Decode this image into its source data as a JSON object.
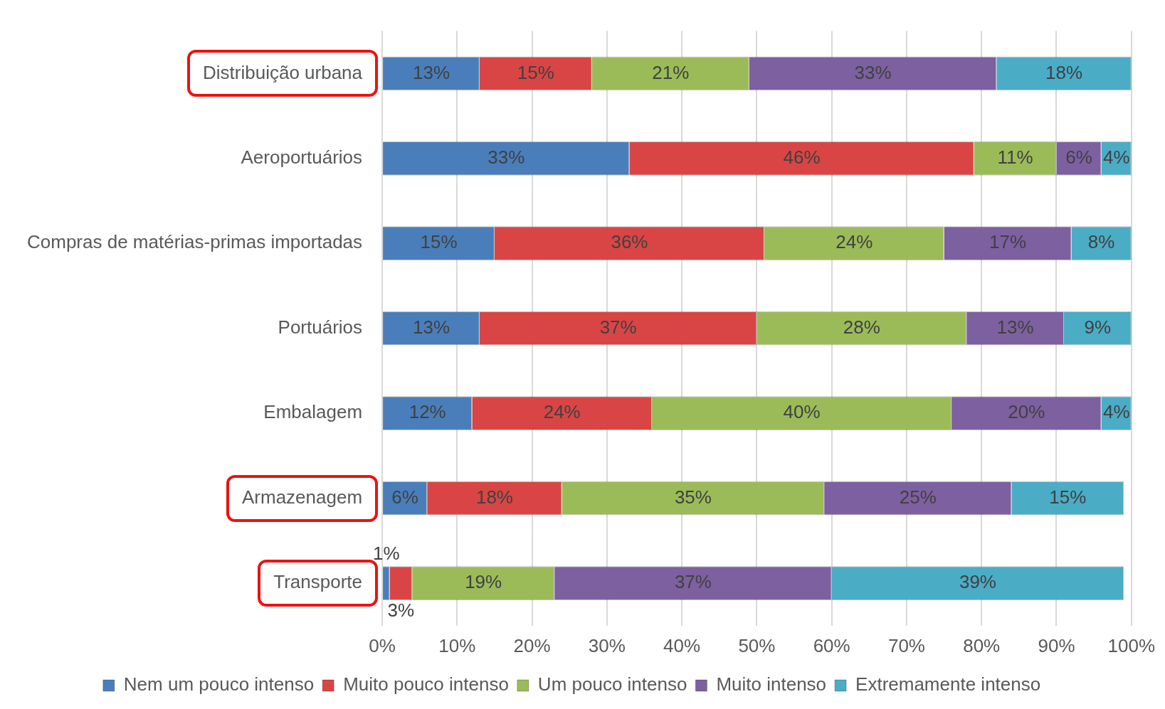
{
  "chart_data": {
    "type": "bar",
    "orientation": "horizontal",
    "stacked": true,
    "categories": [
      "Distribuição urbana",
      "Aeroportuários",
      "Compras de matérias-primas importadas",
      "Portuários",
      "Embalagem",
      "Armazenagem",
      "Transporte"
    ],
    "series": [
      {
        "name": "Nem um pouco intenso",
        "color": "#4a7ebb",
        "values": [
          13,
          33,
          15,
          13,
          12,
          6,
          1
        ],
        "value_labels": [
          "13%",
          "33%",
          "15%",
          "13%",
          "12%",
          "6%",
          "1%"
        ]
      },
      {
        "name": "Muito pouco intenso",
        "color": "#d94545",
        "values": [
          15,
          46,
          36,
          37,
          24,
          18,
          3
        ],
        "value_labels": [
          "15%",
          "46%",
          "36%",
          "37%",
          "24%",
          "18%",
          "3%"
        ]
      },
      {
        "name": "Um pouco intenso",
        "color": "#9bbb59",
        "values": [
          21,
          11,
          24,
          28,
          40,
          35,
          19
        ],
        "value_labels": [
          "21%",
          "11%",
          "24%",
          "28%",
          "40%",
          "35%",
          "19%"
        ]
      },
      {
        "name": "Muito intenso",
        "color": "#7d60a0",
        "values": [
          33,
          6,
          17,
          13,
          20,
          25,
          37
        ],
        "value_labels": [
          "33%",
          "6%",
          "17%",
          "13%",
          "20%",
          "25%",
          "37%"
        ]
      },
      {
        "name": "Extremamente intenso",
        "color": "#4bacc6",
        "values": [
          18,
          4,
          8,
          9,
          4,
          15,
          39
        ],
        "value_labels": [
          "18%",
          "4%",
          "8%",
          "9%",
          "4%",
          "15%",
          "39%"
        ]
      }
    ],
    "xlim": [
      0,
      100
    ],
    "xticks": [
      {
        "value": 0,
        "label": "0%"
      },
      {
        "value": 10,
        "label": "10%"
      },
      {
        "value": 20,
        "label": "20%"
      },
      {
        "value": 30,
        "label": "30%"
      },
      {
        "value": 40,
        "label": "40%"
      },
      {
        "value": 50,
        "label": "50%"
      },
      {
        "value": 60,
        "label": "60%"
      },
      {
        "value": 70,
        "label": "70%"
      },
      {
        "value": 80,
        "label": "80%"
      },
      {
        "value": 90,
        "label": "90%"
      },
      {
        "value": 100,
        "label": "100%"
      }
    ],
    "grid": "x",
    "legend": "bottom"
  }
}
